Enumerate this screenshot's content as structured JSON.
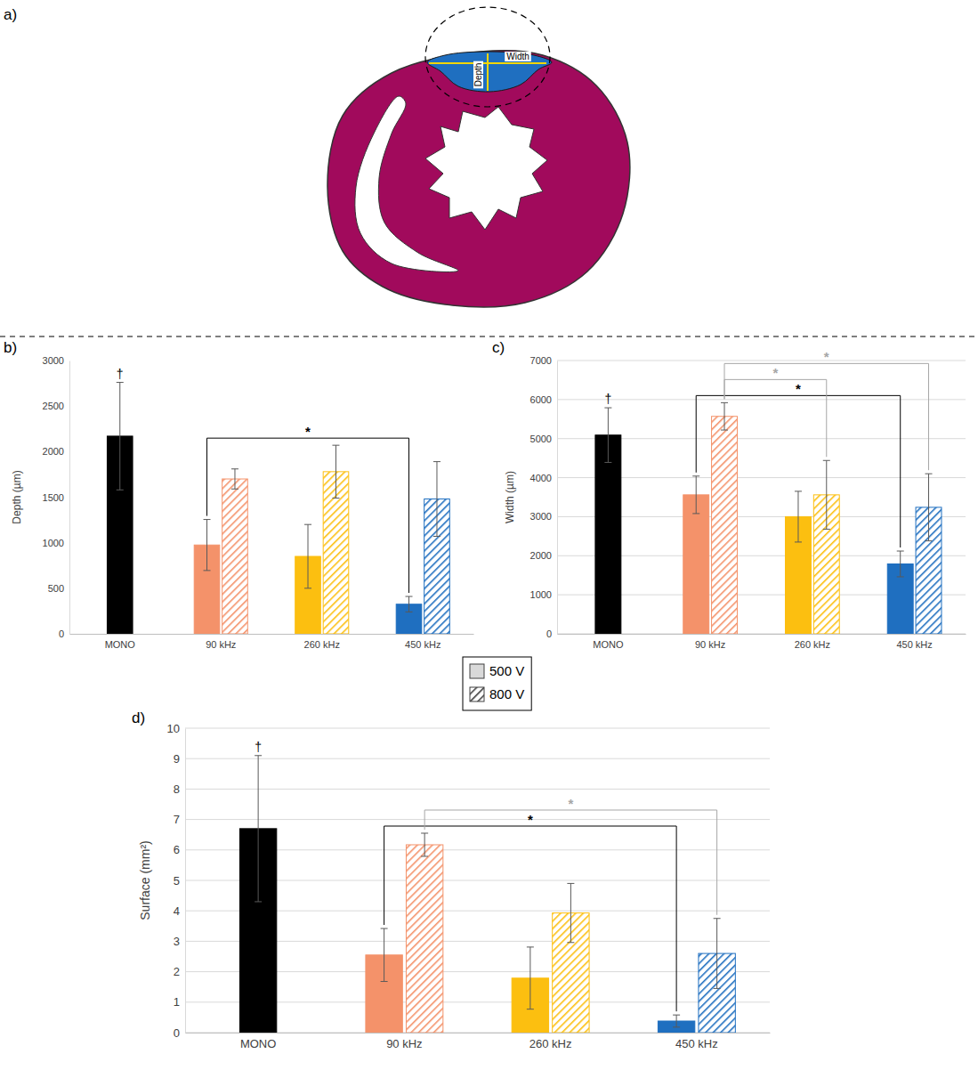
{
  "diagram": {
    "panel_label": "a)",
    "labels": {
      "width": "Width",
      "depth": "Depth"
    }
  },
  "chart_data": [
    {
      "type": "bar",
      "panel_label": "b)",
      "y_label": "Depth (µm)",
      "categories": [
        "MONO",
        "90 kHz",
        "260 kHz",
        "450 kHz"
      ],
      "series": [
        {
          "name": "500 V",
          "colors": [
            "#000000",
            "#f4926a",
            "#fcbf10",
            "#1f6fc0"
          ],
          "values": [
            2170,
            975,
            850,
            325
          ],
          "errors": [
            590,
            280,
            350,
            85
          ]
        },
        {
          "name": "800 V",
          "colors": [
            null,
            "#f4926a",
            "#fcbf10",
            "#1f6fc0"
          ],
          "values": [
            null,
            1700,
            1780,
            1480
          ],
          "errors": [
            null,
            110,
            290,
            410
          ]
        }
      ],
      "ylim": [
        0,
        3000
      ],
      "yticks": [
        0,
        500,
        1000,
        1500,
        2000,
        2500,
        3000
      ],
      "grid": false,
      "annotations": [
        {
          "label": "†",
          "category": "MONO"
        }
      ],
      "significance": [
        {
          "label": "*",
          "color": "#000000",
          "from": {
            "category": "90 kHz",
            "series": "500 V"
          },
          "to": {
            "category": "450 kHz",
            "series": "500 V"
          }
        }
      ]
    },
    {
      "type": "bar",
      "panel_label": "c)",
      "y_label": "Width (µm)",
      "categories": [
        "MONO",
        "90 kHz",
        "260 kHz",
        "450 kHz"
      ],
      "series": [
        {
          "name": "500 V",
          "colors": [
            "#000000",
            "#f4926a",
            "#fcbf10",
            "#1f6fc0"
          ],
          "values": [
            5090,
            3560,
            3000,
            1790
          ],
          "errors": [
            700,
            480,
            650,
            330
          ]
        },
        {
          "name": "800 V",
          "colors": [
            null,
            "#f4926a",
            "#fcbf10",
            "#1f6fc0"
          ],
          "values": [
            null,
            5570,
            3560,
            3240
          ],
          "errors": [
            null,
            350,
            880,
            860
          ]
        }
      ],
      "ylim": [
        0,
        7000
      ],
      "yticks": [
        0,
        1000,
        2000,
        3000,
        4000,
        5000,
        6000,
        7000
      ],
      "grid": true,
      "annotations": [
        {
          "label": "†",
          "category": "MONO"
        }
      ],
      "significance": [
        {
          "label": "*",
          "color": "#000000",
          "from": {
            "category": "90 kHz",
            "series": "500 V"
          },
          "to": {
            "category": "450 kHz",
            "series": "500 V"
          }
        },
        {
          "label": "*",
          "color": "#a6a6a6",
          "from": {
            "category": "90 kHz",
            "series": "800 V"
          },
          "to": {
            "category": "260 kHz",
            "series": "800 V"
          }
        },
        {
          "label": "*",
          "color": "#a6a6a6",
          "from": {
            "category": "90 kHz",
            "series": "800 V"
          },
          "to": {
            "category": "450 kHz",
            "series": "800 V"
          }
        }
      ]
    },
    {
      "type": "bar",
      "panel_label": "d)",
      "y_label": "Surface (mm²)",
      "categories": [
        "MONO",
        "90 kHz",
        "260 kHz",
        "450 kHz"
      ],
      "series": [
        {
          "name": "500 V",
          "colors": [
            "#000000",
            "#f4926a",
            "#fcbf10",
            "#1f6fc0"
          ],
          "values": [
            6.7,
            2.55,
            1.79,
            0.38
          ],
          "errors": [
            2.4,
            0.87,
            1.02,
            0.2
          ]
        },
        {
          "name": "800 V",
          "colors": [
            null,
            "#f4926a",
            "#fcbf10",
            "#1f6fc0"
          ],
          "values": [
            null,
            6.17,
            3.93,
            2.6
          ],
          "errors": [
            null,
            0.38,
            0.97,
            1.15
          ]
        }
      ],
      "ylim": [
        0,
        10
      ],
      "yticks": [
        0,
        1,
        2,
        3,
        4,
        5,
        6,
        7,
        8,
        9,
        10
      ],
      "grid": true,
      "legend": "top",
      "annotations": [
        {
          "label": "†",
          "category": "MONO"
        }
      ],
      "significance": [
        {
          "label": "*",
          "color": "#000000",
          "from": {
            "category": "90 kHz",
            "series": "500 V"
          },
          "to": {
            "category": "450 kHz",
            "series": "500 V"
          }
        },
        {
          "label": "*",
          "color": "#a6a6a6",
          "from": {
            "category": "90 kHz",
            "series": "800 V"
          },
          "to": {
            "category": "450 kHz",
            "series": "800 V"
          }
        }
      ]
    }
  ]
}
